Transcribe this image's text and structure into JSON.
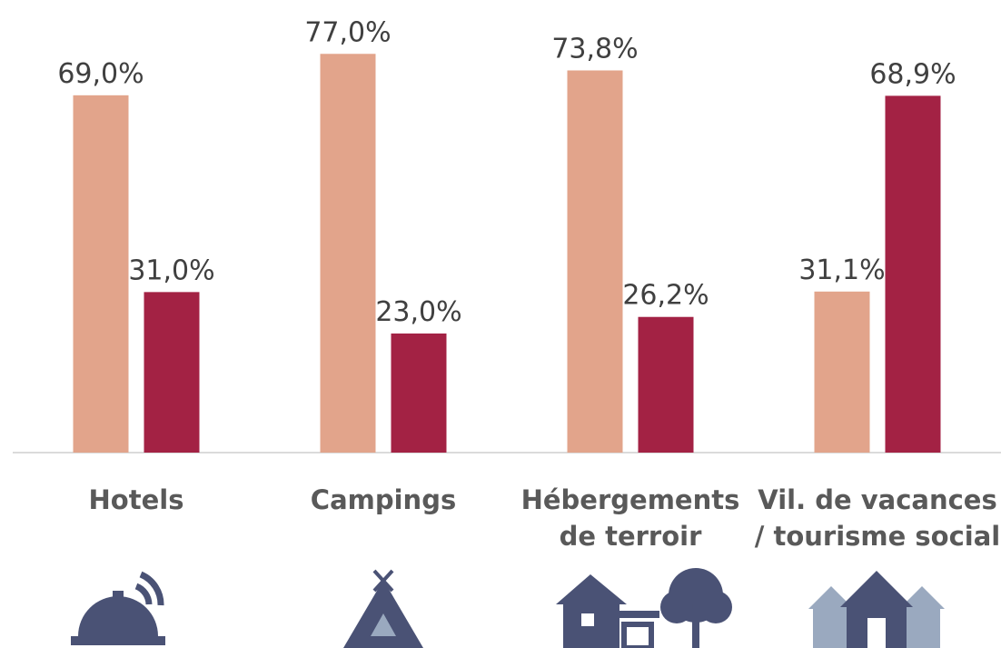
{
  "chart_data": {
    "type": "bar",
    "categories": [
      "Hotels",
      "Campings",
      "Hébergements de terroir",
      "Vil. de vacances / tourisme social"
    ],
    "series": [
      {
        "color": "#e2a48b",
        "values": [
          69.0,
          77.0,
          73.8,
          31.1
        ],
        "value_labels": [
          "69,0%",
          "77,0%",
          "73,8%",
          "31,1%"
        ]
      },
      {
        "color": "#a32244",
        "values": [
          31.0,
          23.0,
          26.2,
          68.9
        ],
        "value_labels": [
          "31,0%",
          "23,0%",
          "26,2%",
          "68,9%"
        ]
      }
    ],
    "ylim": [
      0,
      87.4
    ]
  }
}
